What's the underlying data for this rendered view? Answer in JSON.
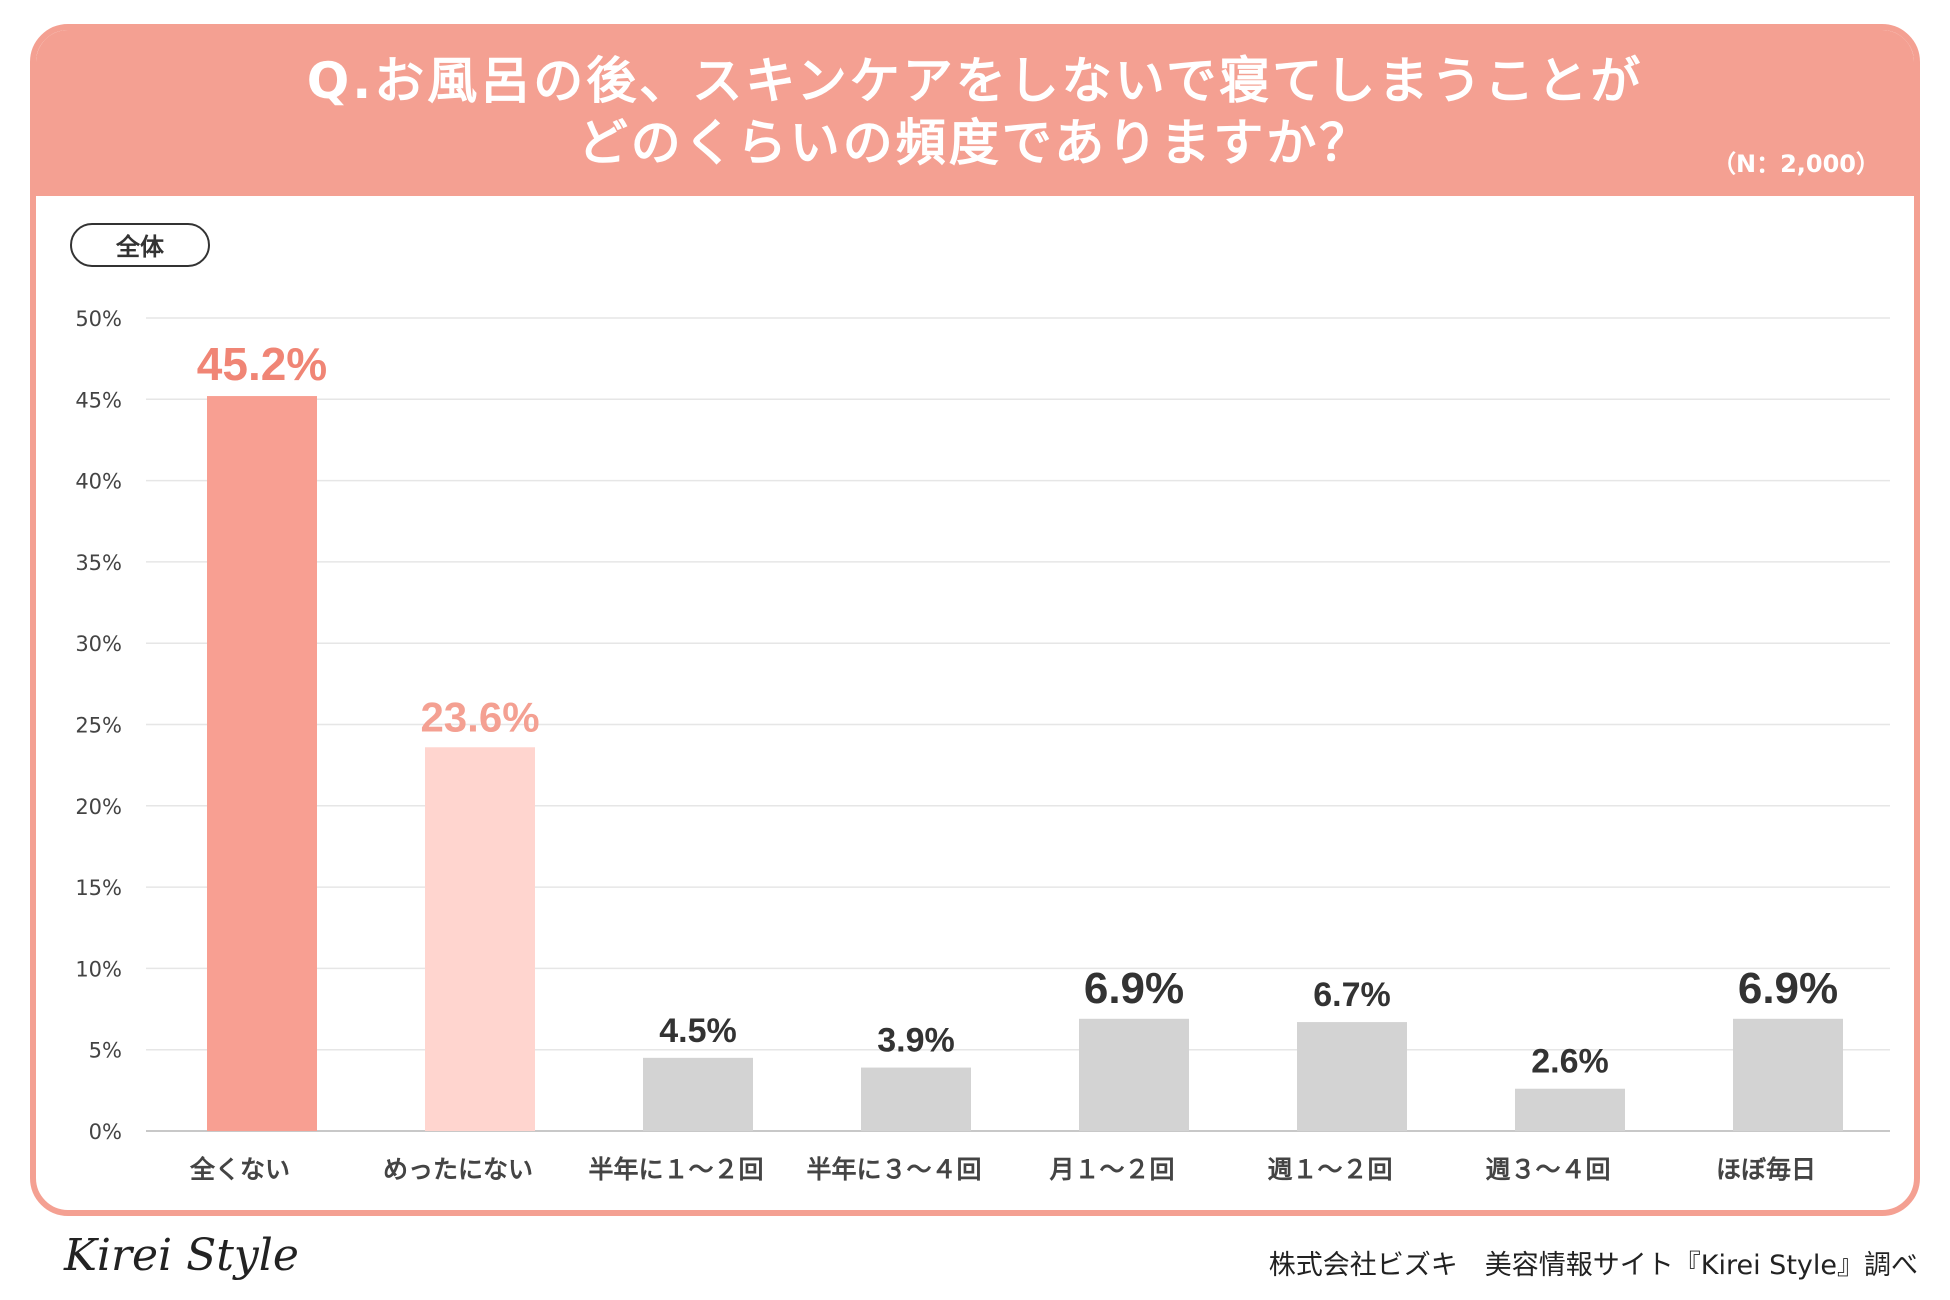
{
  "header": {
    "title_line1": "Q.お風呂の後、スキンケアをしないで寝てしまうことが",
    "title_line2": "どのくらいの頻度でありますか？",
    "sample_size": "（N：2,000）"
  },
  "segment_label": "全体",
  "footer": {
    "logo_text": "Kirei Style",
    "credit": "株式会社ビズキ　美容情報サイト『Kirei Style』調べ"
  },
  "colors": {
    "accent": "#f4a092",
    "bar_primary": "#f89f92",
    "bar_secondary": "#ffd5cf",
    "bar_other": "#d3d3d3",
    "label_primary": "#f08575",
    "label_secondary": "#f4a092",
    "label_other": "#333333"
  },
  "chart_data": {
    "type": "bar",
    "title": "Q.お風呂の後、スキンケアをしないで寝てしまうことがどのくらいの頻度でありますか？",
    "xlabel": "",
    "ylabel": "",
    "ylim": [
      0,
      50
    ],
    "yticks": [
      0,
      5,
      10,
      15,
      20,
      25,
      30,
      35,
      40,
      45,
      50
    ],
    "ytick_labels": [
      "0%",
      "5%",
      "10%",
      "15%",
      "20%",
      "25%",
      "30%",
      "35%",
      "40%",
      "45%",
      "50%"
    ],
    "grid": true,
    "categories": [
      "全くない",
      "めったにない",
      "半年に１〜２回",
      "半年に３〜４回",
      "月１〜２回",
      "週１〜２回",
      "週３〜４回",
      "ほぼ毎日"
    ],
    "values": [
      45.2,
      23.6,
      4.5,
      3.9,
      6.9,
      6.7,
      2.6,
      6.9
    ],
    "value_labels": [
      "45.2%",
      "23.6%",
      "4.5%",
      "3.9%",
      "6.9%",
      "6.7%",
      "2.6%",
      "6.9%"
    ],
    "bar_styles": [
      "primary",
      "secondary",
      "other",
      "other",
      "other-emph",
      "other",
      "other",
      "other-emph"
    ]
  }
}
